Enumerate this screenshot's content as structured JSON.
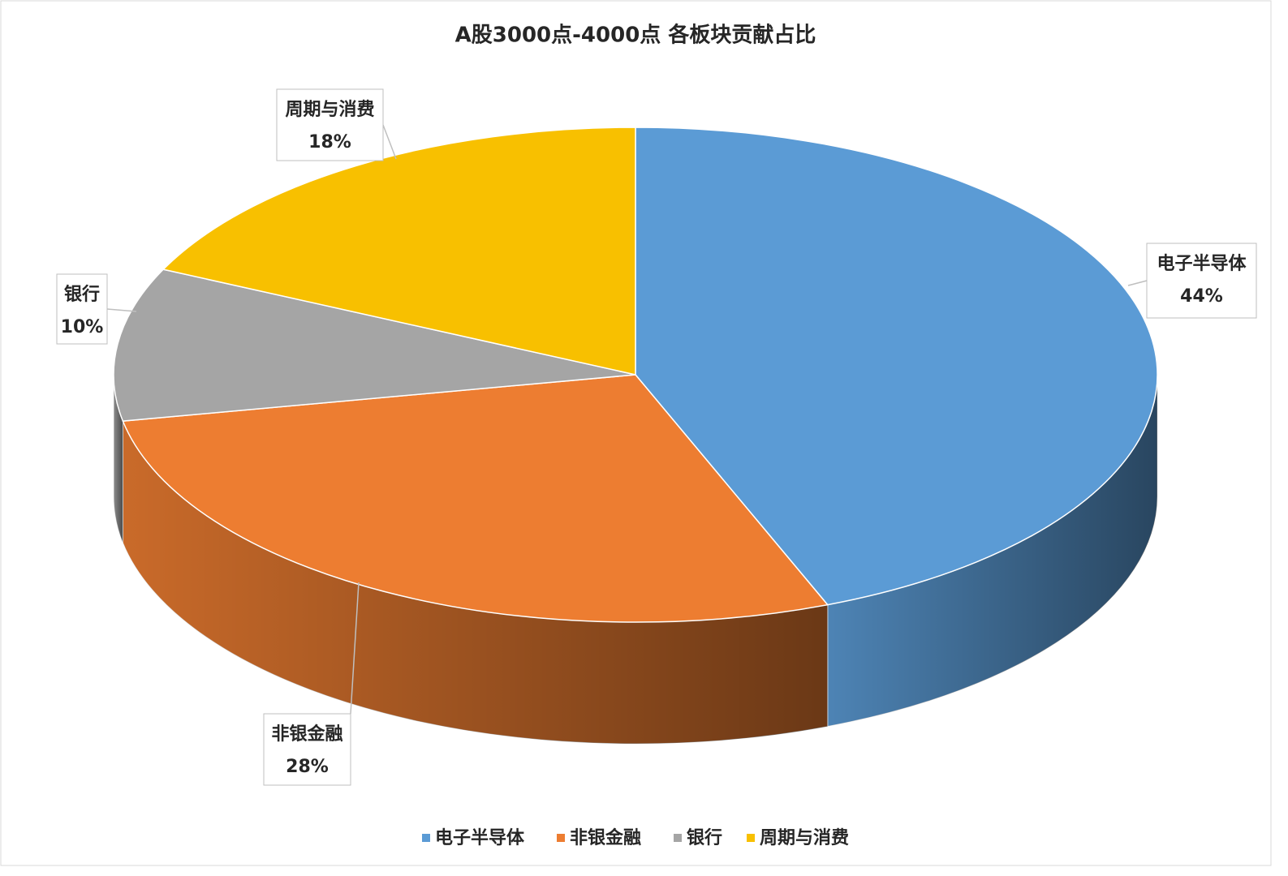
{
  "chart_data": {
    "type": "pie3d",
    "title": "A股3000点-4000点 各板块贡献占比",
    "categories": [
      "电子半导体",
      "非银金融",
      "银行",
      "周期与消费"
    ],
    "values": [
      44,
      28,
      10,
      18
    ],
    "value_labels": [
      "44%",
      "28%",
      "10%",
      "18%"
    ],
    "colors": [
      "#5b9bd5",
      "#ed7d31",
      "#a5a5a5",
      "#f8c000"
    ],
    "legend": "bottom"
  }
}
